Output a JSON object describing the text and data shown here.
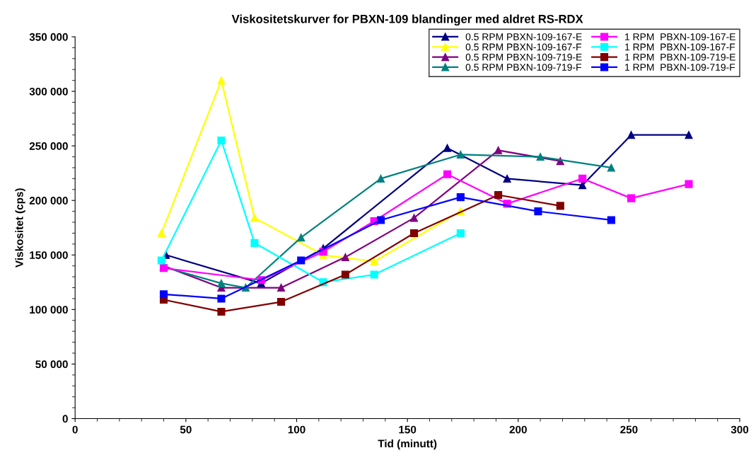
{
  "chart_data": {
    "type": "line",
    "title": "Viskositetskurver for PBXN-109 blandinger med aldret RS-RDX",
    "xlabel": "Tid (minutt)",
    "ylabel": "Viskositet (cps)",
    "xlim": [
      0,
      300
    ],
    "xticks": [
      0,
      50,
      100,
      150,
      200,
      250,
      300
    ],
    "ylim": [
      0,
      350000
    ],
    "yticks": [
      {
        "value": 0,
        "label": "0"
      },
      {
        "value": 50000,
        "label": "50 000"
      },
      {
        "value": 100000,
        "label": "100 000"
      },
      {
        "value": 150000,
        "label": "150 000"
      },
      {
        "value": 200000,
        "label": "200 000"
      },
      {
        "value": 250000,
        "label": "250 000"
      },
      {
        "value": 300000,
        "label": "300 000"
      },
      {
        "value": 350000,
        "label": "350 000"
      }
    ],
    "grid": false,
    "legend": "top right",
    "series": [
      {
        "name": "0.5 RPM PBXN-109-167-E",
        "color": "#000080",
        "marker": "triangle",
        "x": [
          41,
          84,
          112,
          168,
          195,
          229,
          251,
          277
        ],
        "values": [
          150000,
          124000,
          156000,
          248000,
          220000,
          214000,
          260000,
          260000
        ]
      },
      {
        "name": "0.5 RPM PBXN-109-167-F",
        "color": "#ffff00",
        "marker": "triangle",
        "x": [
          39,
          66,
          81,
          112,
          135,
          174
        ],
        "values": [
          170000,
          310000,
          184000,
          150000,
          144000,
          190000
        ]
      },
      {
        "name": "0.5 RPM PBXN-109-719-E",
        "color": "#800080",
        "marker": "triangle",
        "x": [
          40,
          66,
          93,
          122,
          153,
          191,
          219
        ],
        "values": [
          140000,
          120000,
          120000,
          148000,
          184000,
          246000,
          236000
        ]
      },
      {
        "name": "0.5 RPM PBXN-109-719-F",
        "color": "#008080",
        "marker": "triangle",
        "x": [
          40,
          66,
          77,
          102,
          138,
          174,
          210,
          242
        ],
        "values": [
          139000,
          124000,
          120000,
          166000,
          220000,
          242000,
          240000,
          230000
        ]
      },
      {
        "name": "1 RPM  PBXN-109-167-E",
        "color": "#ff00ff",
        "marker": "square",
        "x": [
          40,
          84,
          112,
          135,
          168,
          195,
          229,
          251,
          277
        ],
        "values": [
          138000,
          127000,
          153000,
          181000,
          224000,
          197000,
          220000,
          202000,
          215000
        ]
      },
      {
        "name": "1 RPM  PBXN-109-167-F",
        "color": "#00ffff",
        "marker": "square",
        "x": [
          39,
          66,
          81,
          112,
          135,
          174
        ],
        "values": [
          145000,
          255000,
          161000,
          125000,
          132000,
          170000
        ]
      },
      {
        "name": "1 RPM  PBXN-109-719-E",
        "color": "#800000",
        "marker": "square",
        "x": [
          40,
          66,
          93,
          122,
          153,
          191,
          219
        ],
        "values": [
          109000,
          98000,
          107000,
          132000,
          170000,
          205000,
          195000
        ]
      },
      {
        "name": "1 RPM  PBXN-109-719-F",
        "color": "#0000ff",
        "marker": "square",
        "x": [
          40,
          66,
          102,
          138,
          174,
          209,
          242
        ],
        "values": [
          114000,
          110000,
          145000,
          182000,
          203000,
          190000,
          182000
        ]
      }
    ]
  }
}
